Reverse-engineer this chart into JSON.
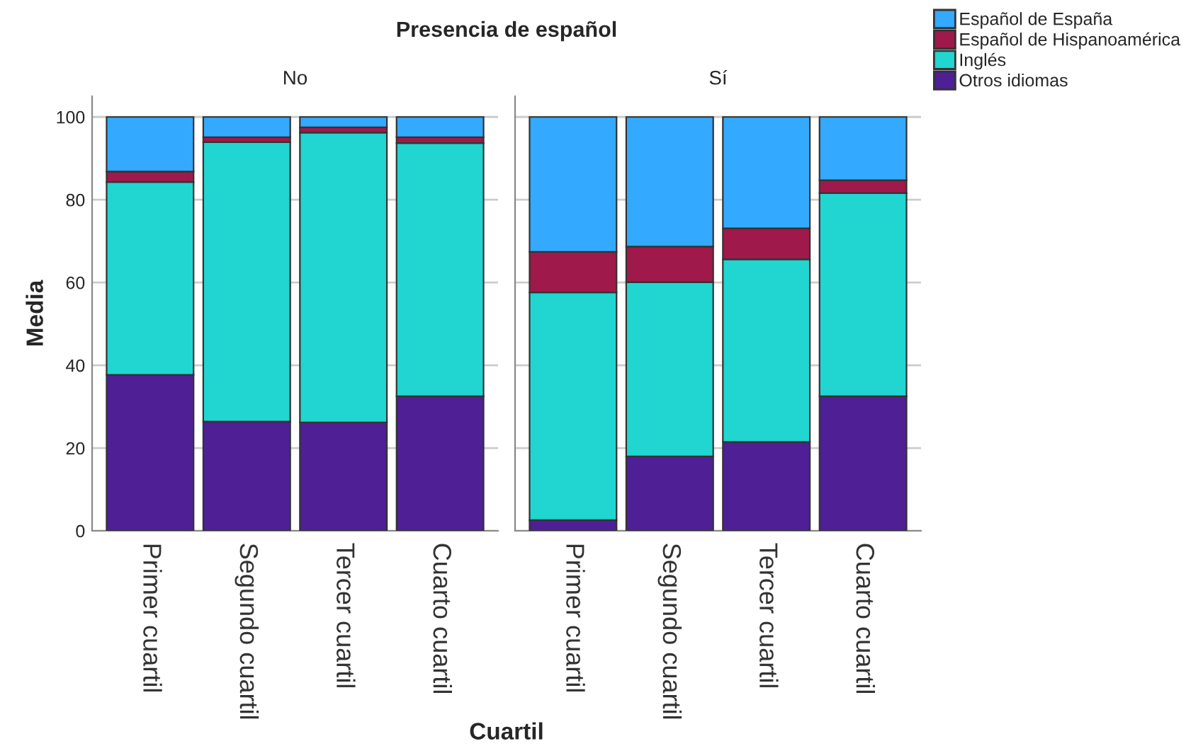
{
  "chart_data": [
    {
      "type": "bar",
      "stacked": true,
      "title": "Presencia de español",
      "subtitle": "No",
      "xlabel": "Cuartil",
      "ylabel": "Media",
      "categories": [
        "Primer cuartil",
        "Segundo cuartil",
        "Tercer cuartil",
        "Cuarto cuartil"
      ],
      "ylim": [
        0,
        105
      ],
      "yticks": [
        0,
        20,
        40,
        60,
        80,
        100
      ],
      "grid": "y",
      "series": [
        {
          "color": "#4f1f96",
          "values": [
            37.7,
            26.4,
            26.2,
            32.5
          ]
        },
        {
          "color": "#21d5d1",
          "values": [
            46.6,
            67.5,
            70.0,
            61.2
          ]
        },
        {
          "color": "#a0194b",
          "values": [
            2.5,
            1.2,
            1.3,
            1.4
          ]
        },
        {
          "color": "#33aaff",
          "values": [
            13.2,
            4.9,
            2.5,
            4.9
          ]
        }
      ]
    },
    {
      "type": "bar",
      "stacked": true,
      "subtitle": "Sí",
      "categories": [
        "Primer cuartil",
        "Segundo cuartil",
        "Tercer cuartil",
        "Cuarto cuartil"
      ],
      "ylim": [
        0,
        105
      ],
      "yticks": [
        0,
        20,
        40,
        60,
        80,
        100
      ],
      "grid": "y",
      "tick_labels": "x",
      "legend": "top right",
      "series": [
        {
          "name": "Otros idiomas",
          "color": "#4f1f96",
          "values": [
            2.6,
            18.0,
            21.5,
            32.5
          ]
        },
        {
          "name": "Inglés",
          "color": "#21d5d1",
          "values": [
            55.0,
            42.1,
            44.1,
            49.1
          ]
        },
        {
          "name": "Español de Hispanoamérica",
          "color": "#a0194b",
          "values": [
            9.8,
            8.6,
            7.5,
            3.1
          ]
        },
        {
          "name": "Español de España",
          "color": "#33aaff",
          "values": [
            32.6,
            31.3,
            26.9,
            15.3
          ]
        }
      ]
    }
  ]
}
